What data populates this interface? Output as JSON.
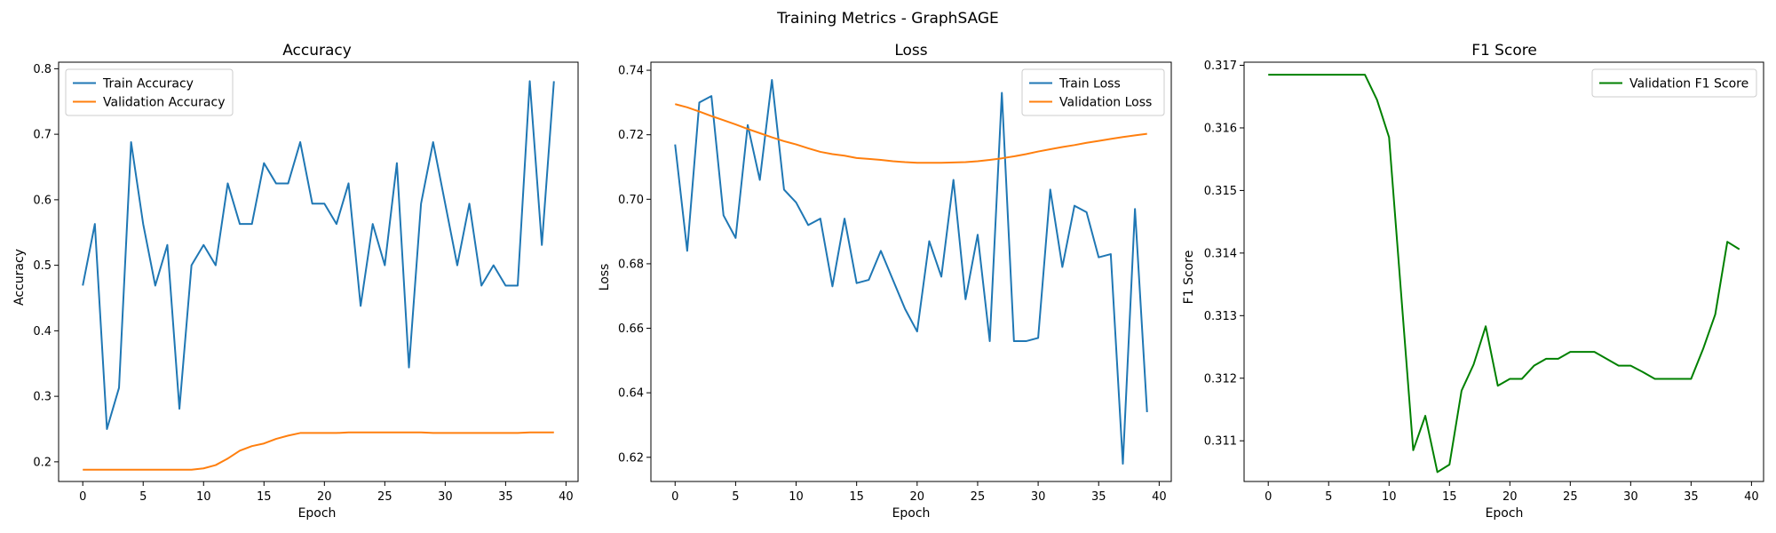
{
  "figure": {
    "suptitle": "Training Metrics - GraphSAGE"
  },
  "chart_data": [
    {
      "type": "line",
      "title": "Accuracy",
      "xlabel": "Epoch",
      "ylabel": "Accuracy",
      "xlim": [
        -2,
        41
      ],
      "ylim": [
        0.17,
        0.81
      ],
      "xticks": [
        0,
        5,
        10,
        15,
        20,
        25,
        30,
        35,
        40
      ],
      "yticks": [
        0.2,
        0.3,
        0.4,
        0.5,
        0.6,
        0.7,
        0.8
      ],
      "ytick_labels": [
        "0.2",
        "0.3",
        "0.4",
        "0.5",
        "0.6",
        "0.7",
        "0.8"
      ],
      "legend": "upper left",
      "grid": false,
      "series": [
        {
          "name": "Train Accuracy",
          "color": "#1f77b4",
          "values": [
            0.469,
            0.563,
            0.25,
            0.313,
            0.688,
            0.563,
            0.469,
            0.531,
            0.281,
            0.5,
            0.531,
            0.5,
            0.625,
            0.563,
            0.563,
            0.656,
            0.625,
            0.625,
            0.688,
            0.594,
            0.594,
            0.563,
            0.625,
            0.438,
            0.563,
            0.5,
            0.656,
            0.344,
            0.594,
            0.688,
            0.594,
            0.5,
            0.594,
            0.469,
            0.5,
            0.469,
            0.469,
            0.781,
            0.531,
            0.781
          ]
        },
        {
          "name": "Validation Accuracy",
          "color": "#ff7f0e",
          "values": [
            0.188,
            0.188,
            0.188,
            0.188,
            0.188,
            0.188,
            0.188,
            0.188,
            0.188,
            0.188,
            0.19,
            0.195,
            0.205,
            0.217,
            0.224,
            0.228,
            0.235,
            0.24,
            0.244,
            0.244,
            0.244,
            0.244,
            0.245,
            0.245,
            0.245,
            0.245,
            0.245,
            0.245,
            0.245,
            0.244,
            0.244,
            0.244,
            0.244,
            0.244,
            0.244,
            0.244,
            0.244,
            0.245,
            0.245,
            0.245
          ]
        }
      ]
    },
    {
      "type": "line",
      "title": "Loss",
      "xlabel": "Epoch",
      "ylabel": "Loss",
      "xlim": [
        -2,
        41
      ],
      "ylim": [
        0.6125,
        0.7425
      ],
      "xticks": [
        0,
        5,
        10,
        15,
        20,
        25,
        30,
        35,
        40
      ],
      "yticks": [
        0.62,
        0.64,
        0.66,
        0.68,
        0.7,
        0.72,
        0.74
      ],
      "ytick_labels": [
        "0.62",
        "0.64",
        "0.66",
        "0.68",
        "0.70",
        "0.72",
        "0.74"
      ],
      "legend": "upper right",
      "grid": false,
      "series": [
        {
          "name": "Train Loss",
          "color": "#1f77b4",
          "values": [
            0.717,
            0.684,
            0.73,
            0.732,
            0.695,
            0.688,
            0.723,
            0.706,
            0.737,
            0.703,
            0.699,
            0.692,
            0.694,
            0.673,
            0.694,
            0.674,
            0.675,
            0.684,
            0.675,
            0.666,
            0.659,
            0.687,
            0.676,
            0.706,
            0.669,
            0.689,
            0.656,
            0.733,
            0.656,
            0.656,
            0.657,
            0.703,
            0.679,
            0.698,
            0.696,
            0.682,
            0.683,
            0.618,
            0.697,
            0.634
          ]
        },
        {
          "name": "Validation Loss",
          "color": "#ff7f0e",
          "values": [
            0.7295,
            0.7285,
            0.7272,
            0.7258,
            0.7245,
            0.7232,
            0.7218,
            0.7205,
            0.7192,
            0.718,
            0.717,
            0.7158,
            0.7147,
            0.714,
            0.7135,
            0.7128,
            0.7125,
            0.7122,
            0.7118,
            0.7115,
            0.7113,
            0.7113,
            0.7113,
            0.7114,
            0.7115,
            0.7118,
            0.7122,
            0.7127,
            0.7133,
            0.714,
            0.7148,
            0.7155,
            0.7162,
            0.7168,
            0.7175,
            0.7181,
            0.7187,
            0.7193,
            0.7198,
            0.7203
          ]
        }
      ]
    },
    {
      "type": "line",
      "title": "F1 Score",
      "xlabel": "Epoch",
      "ylabel": "F1 Score",
      "xlim": [
        -2,
        41
      ],
      "ylim": [
        0.31035,
        0.31705
      ],
      "xticks": [
        0,
        5,
        10,
        15,
        20,
        25,
        30,
        35,
        40
      ],
      "yticks": [
        0.311,
        0.312,
        0.313,
        0.314,
        0.315,
        0.316,
        0.317
      ],
      "ytick_labels": [
        "0.311",
        "0.312",
        "0.313",
        "0.314",
        "0.315",
        "0.316",
        "0.317"
      ],
      "legend": "upper right",
      "grid": false,
      "series": [
        {
          "name": "Validation F1 Score",
          "color": "#008000",
          "values": [
            0.31685,
            0.31685,
            0.31685,
            0.31685,
            0.31685,
            0.31685,
            0.31685,
            0.31685,
            0.31685,
            0.31645,
            0.31585,
            0.31335,
            0.31085,
            0.3114,
            0.3105,
            0.31062,
            0.3118,
            0.31222,
            0.31283,
            0.31188,
            0.31199,
            0.31199,
            0.3122,
            0.31231,
            0.31231,
            0.31242,
            0.31242,
            0.31242,
            0.31231,
            0.3122,
            0.3122,
            0.3121,
            0.31199,
            0.31199,
            0.31199,
            0.31199,
            0.31247,
            0.31302,
            0.31418,
            0.31406
          ]
        }
      ]
    }
  ]
}
